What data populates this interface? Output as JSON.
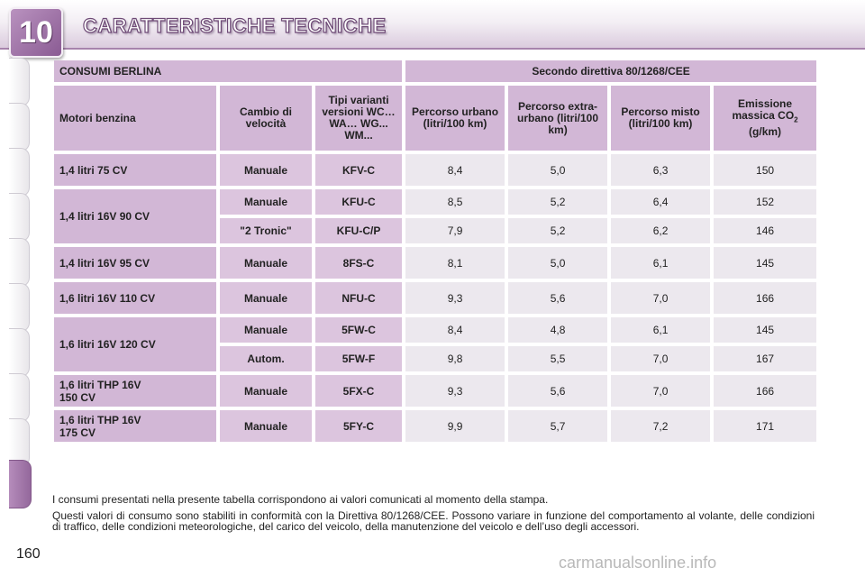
{
  "header": {
    "chapter_number": "10",
    "title": "CARATTERISTICHE TECNICHE"
  },
  "table": {
    "title_left": "CONSUMI BERLINA",
    "title_right": "Secondo direttiva 80/1268/CEE",
    "col_headers": {
      "motore": "Motori benzina",
      "cambio": "Cambio di velocità",
      "tipi": "Tipi varianti versioni WC… WA… WG... WM...",
      "urbano": "Percorso urbano (litri/100 km)",
      "extra": "Percorso extra-urbano (litri/100 km)",
      "misto": "Percorso misto (litri/100 km)",
      "emissione": "Emissione massica CO",
      "emissione_sub": "2",
      "emissione_unit": "(g/km)"
    },
    "rows": [
      {
        "motore": "1,4 litri 75 CV",
        "cambio": "Manuale",
        "tipo": "KFV-C",
        "urbano": "8,4",
        "extra": "5,0",
        "misto": "6,3",
        "co2": "150"
      },
      {
        "motore": "1,4 litri 16V 90 CV",
        "cambio": "Manuale",
        "tipo": "KFU-C",
        "urbano": "8,5",
        "extra": "5,2",
        "misto": "6,4",
        "co2": "152"
      },
      {
        "cambio": "\"2 Tronic\"",
        "tipo": "KFU-C/P",
        "urbano": "7,9",
        "extra": "5,2",
        "misto": "6,2",
        "co2": "146"
      },
      {
        "motore": "1,4 litri 16V 95 CV",
        "cambio": "Manuale",
        "tipo": "8FS-C",
        "urbano": "8,1",
        "extra": "5,0",
        "misto": "6,1",
        "co2": "145"
      },
      {
        "motore": "1,6 litri 16V 110 CV",
        "cambio": "Manuale",
        "tipo": "NFU-C",
        "urbano": "9,3",
        "extra": "5,6",
        "misto": "7,0",
        "co2": "166"
      },
      {
        "motore": "1,6 litri 16V 120 CV",
        "cambio": "Manuale",
        "tipo": "5FW-C",
        "urbano": "8,4",
        "extra": "4,8",
        "misto": "6,1",
        "co2": "145"
      },
      {
        "cambio": "Autom.",
        "tipo": "5FW-F",
        "urbano": "9,8",
        "extra": "5,5",
        "misto": "7,0",
        "co2": "167"
      },
      {
        "motore_l1": "1,6 litri THP 16V",
        "motore_l2": "150 CV",
        "cambio": "Manuale",
        "tipo": "5FX-C",
        "urbano": "9,3",
        "extra": "5,6",
        "misto": "7,0",
        "co2": "166"
      },
      {
        "motore_l1": "1,6 litri THP 16V",
        "motore_l2": "175 CV",
        "cambio": "Manuale",
        "tipo": "5FY-C",
        "urbano": "9,9",
        "extra": "5,7",
        "misto": "7,2",
        "co2": "171"
      }
    ]
  },
  "footer": {
    "paragraph_1": "I consumi presentati nella presente tabella corrispondono ai valori comunicati al momento della stampa.",
    "paragraph_2": "Questi valori di consumo sono stabiliti in conformità con la Direttiva 80/1268/CEE. Possono variare in funzione del compor­tamento al volante, delle condizioni di traffico, delle condizioni meteorologiche, del carico del veicolo, della manutenzione del veicolo e dell’uso degli accessori."
  },
  "page_number": "160",
  "watermark": "carmanualsonline.info",
  "colors": {
    "accent": "#9a6aa2",
    "header_cell": "#d2b7d6",
    "value_cell": "#ece8ee"
  }
}
